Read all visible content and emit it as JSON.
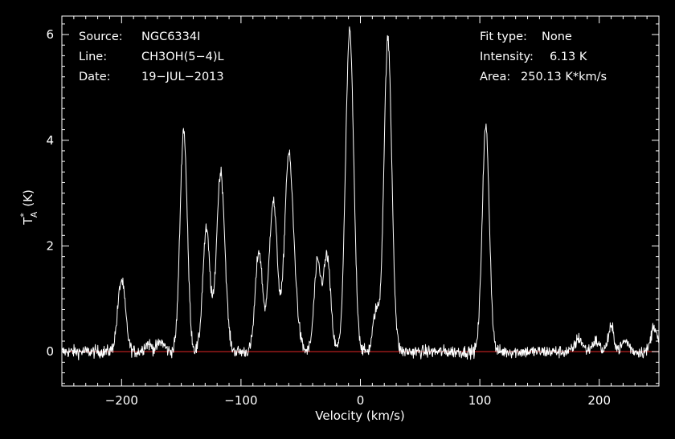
{
  "chart_data": {
    "type": "line",
    "xlabel": "Velocity (km/s)",
    "ylabel": "T",
    "ylabel_sup": "*",
    "ylabel_sub": "A",
    "ylabel_unit": "(K)",
    "xlim": [
      -250,
      250
    ],
    "ylim": [
      -0.65,
      6.35
    ],
    "xticks": [
      -200,
      -100,
      0,
      100,
      200
    ],
    "xtick_labels": [
      "−200",
      "−100",
      "0",
      "100",
      "200"
    ],
    "yticks": [
      0,
      2,
      4,
      6
    ],
    "ytick_labels": [
      "0",
      "2",
      "4",
      "6"
    ],
    "grid": false,
    "colors": {
      "spectrum": "#ffffff",
      "baseline": "#cc2222",
      "axes": "#ffffff",
      "background": "#000000"
    },
    "baseline_value": 0,
    "noise_rms_K": 0.06,
    "lines": [
      {
        "velocity": -200,
        "peak": 1.35,
        "width": 3.2
      },
      {
        "velocity": -178,
        "peak": 0.15,
        "width": 3
      },
      {
        "velocity": -167,
        "peak": 0.18,
        "width": 3
      },
      {
        "velocity": -148,
        "peak": 4.2,
        "width": 3.0
      },
      {
        "velocity": -129,
        "peak": 2.3,
        "width": 3.0
      },
      {
        "velocity": -117,
        "peak": 3.4,
        "width": 3.5
      },
      {
        "velocity": -85,
        "peak": 1.9,
        "width": 3.0
      },
      {
        "velocity": -73,
        "peak": 2.85,
        "width": 3.5
      },
      {
        "velocity": -61,
        "peak": 2.0,
        "width": 3.0
      },
      {
        "velocity": -58,
        "peak": 2.1,
        "width": 4.0
      },
      {
        "velocity": -36,
        "peak": 1.65,
        "width": 2.8
      },
      {
        "velocity": -28,
        "peak": 1.8,
        "width": 3.0
      },
      {
        "velocity": -9,
        "peak": 6.05,
        "width": 3.4
      },
      {
        "velocity": 13,
        "peak": 0.75,
        "width": 2.5
      },
      {
        "velocity": 23,
        "peak": 5.9,
        "width": 3.3
      },
      {
        "velocity": 105,
        "peak": 4.25,
        "width": 3.0
      },
      {
        "velocity": 183,
        "peak": 0.25,
        "width": 3
      },
      {
        "velocity": 197,
        "peak": 0.2,
        "width": 3
      },
      {
        "velocity": 210,
        "peak": 0.45,
        "width": 2.5
      },
      {
        "velocity": 222,
        "peak": 0.2,
        "width": 3
      },
      {
        "velocity": 246,
        "peak": 0.5,
        "width": 2.5
      }
    ]
  },
  "info": {
    "source_key": "Source:",
    "source_val": "NGC6334I",
    "line_key": "Line:",
    "line_val": "CH3OH(5−4)L",
    "date_key": "Date:",
    "date_val": "19−JUL−2013",
    "fit_key": "Fit type:",
    "fit_val": "None",
    "intensity_key": "Intensity:",
    "intensity_val": "6.13 K",
    "area_key": "Area:",
    "area_val": "250.13 K*km/s"
  }
}
